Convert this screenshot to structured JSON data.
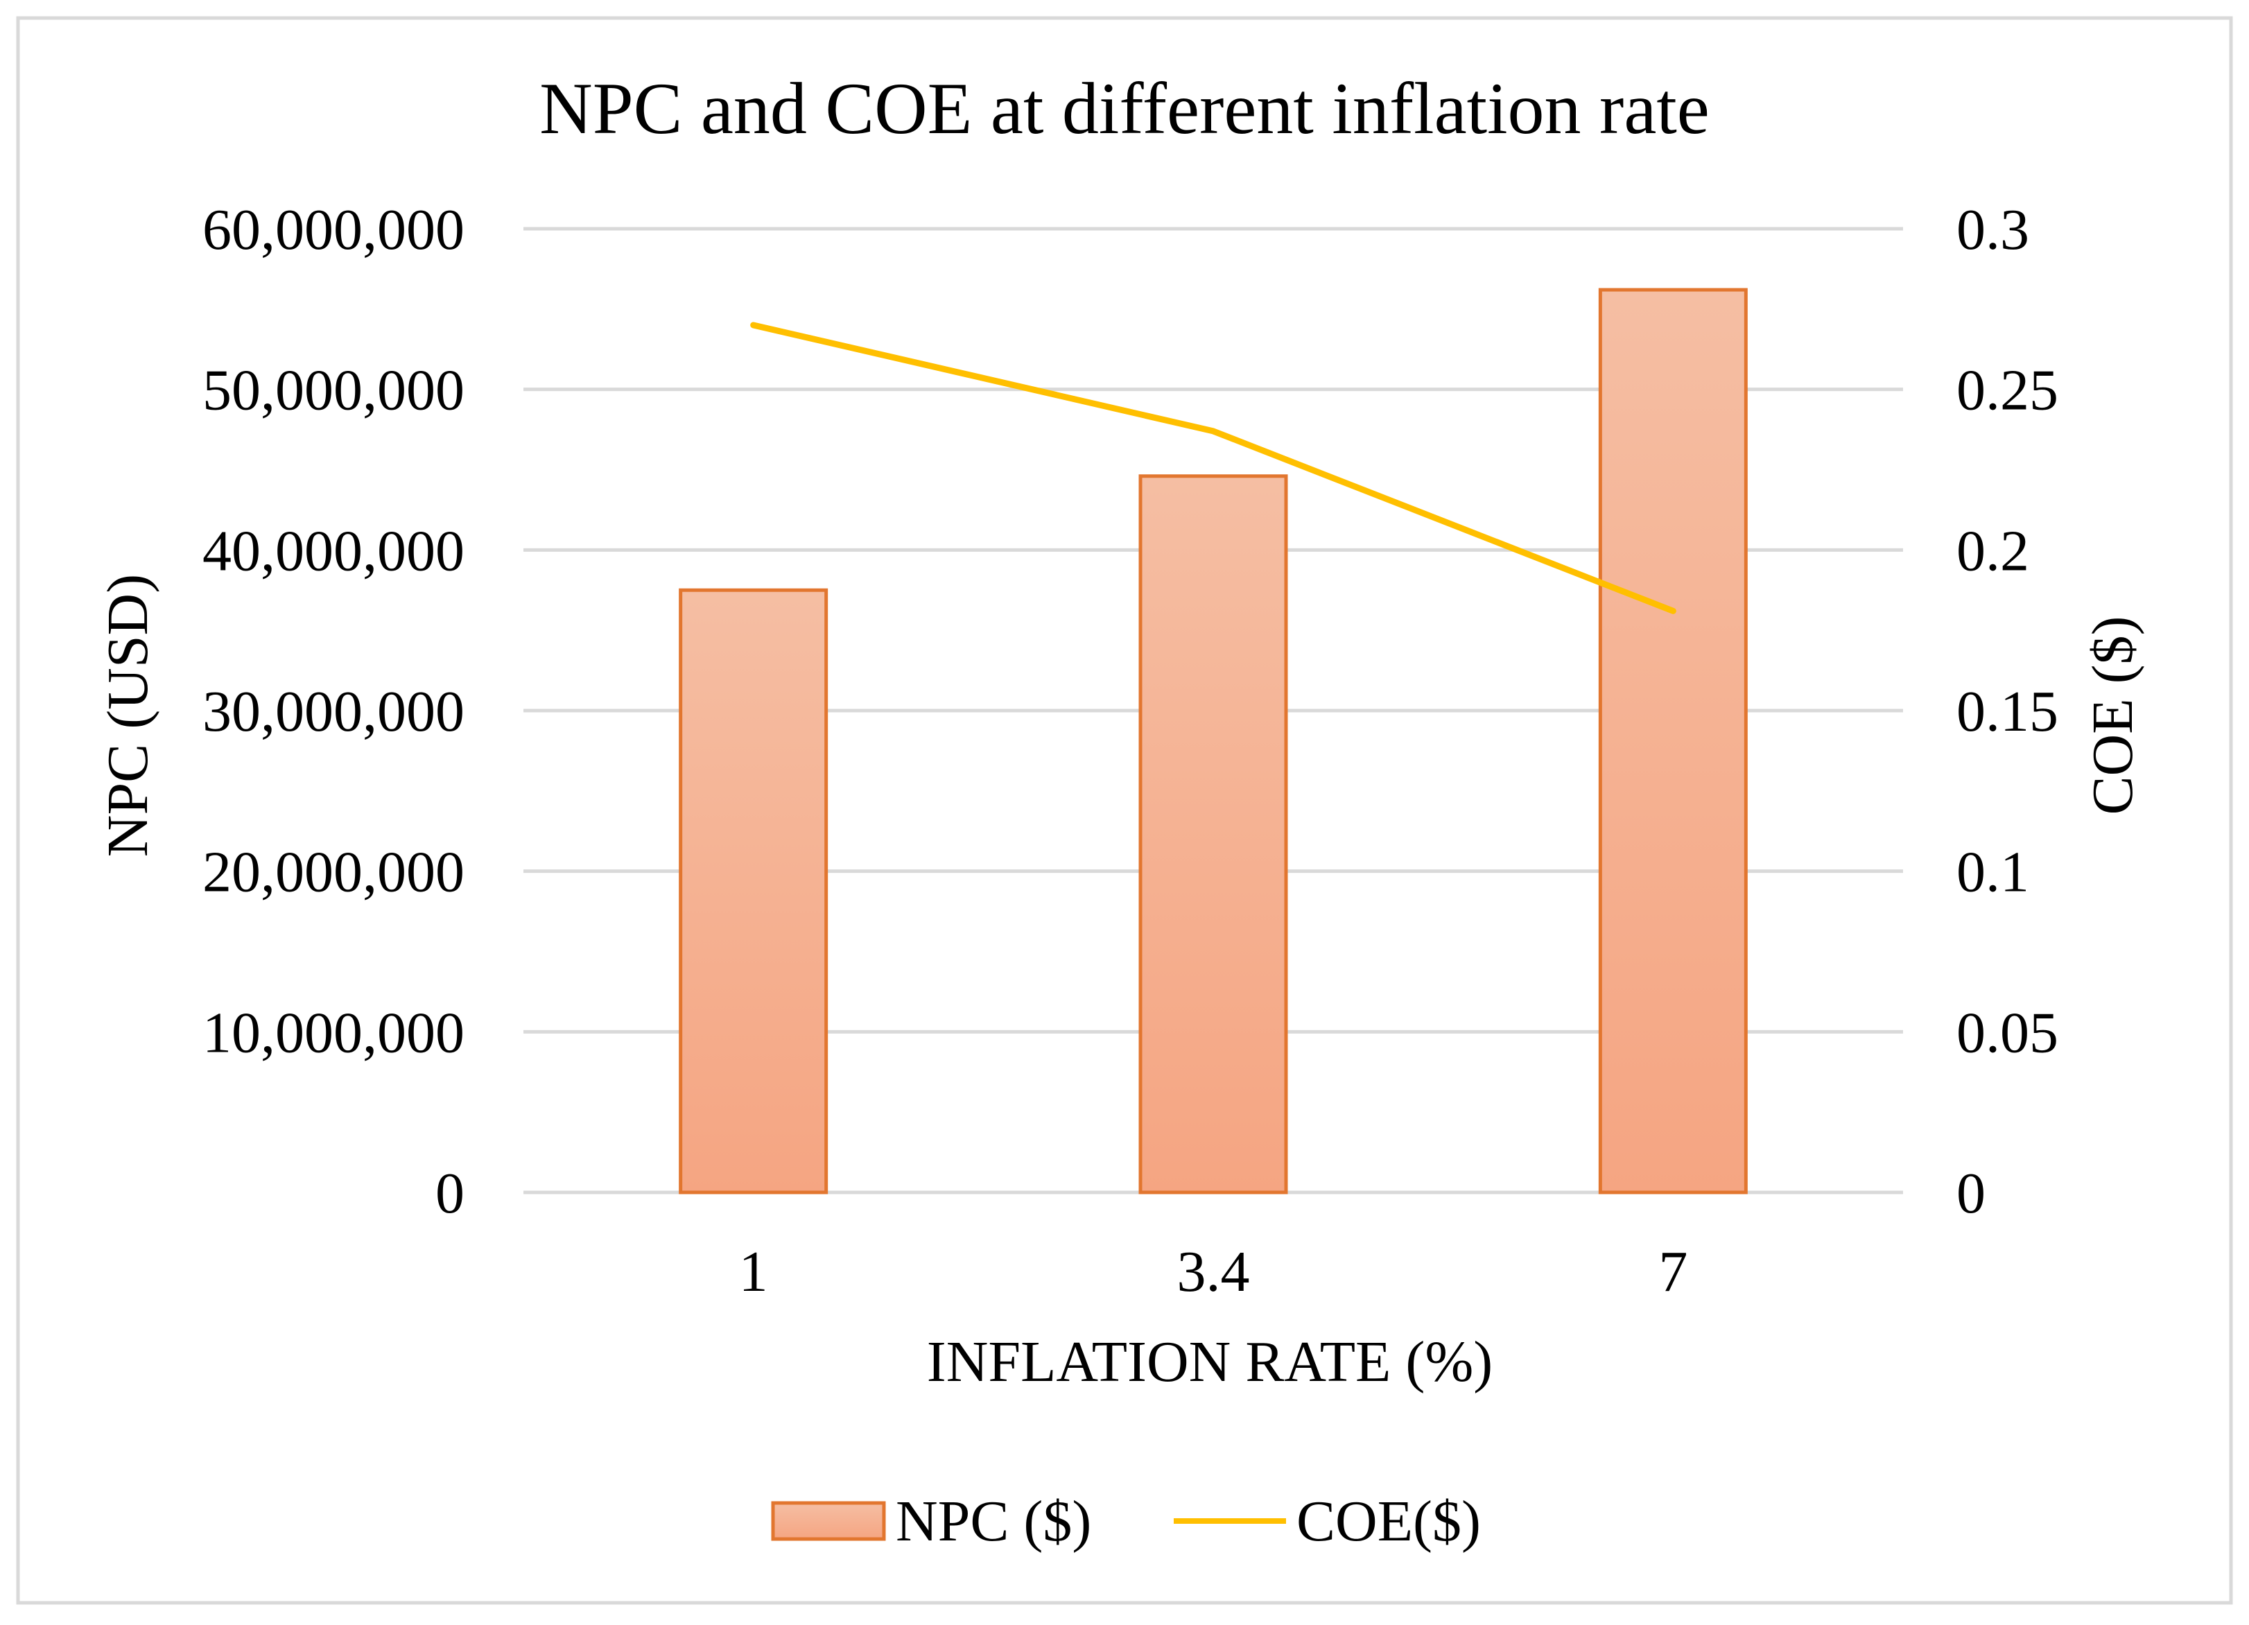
{
  "chart_data": {
    "type": "bar",
    "title": "NPC and COE at different inflation rate",
    "xlabel": "INFLATION RATE (%)",
    "ylabel": "NPC (USD)",
    "y2label": "COE ($)",
    "categories": [
      "1",
      "3.4",
      "7"
    ],
    "ylim": [
      0,
      60000000
    ],
    "y2lim": [
      0,
      0.3
    ],
    "y_ticks": [
      "0",
      "10,000,000",
      "20,000,000",
      "30,000,000",
      "40,000,000",
      "50,000,000",
      "60,000,000"
    ],
    "y2_ticks": [
      "0",
      "0.05",
      "0.1",
      "0.15",
      "0.2",
      "0.25",
      "0.3"
    ],
    "grid": true,
    "legend_position": "bottom",
    "series": [
      {
        "name": "NPC ($)",
        "type": "bar",
        "axis": "left",
        "values": [
          37500000,
          44600000,
          56200000
        ],
        "color": "#f5a582",
        "stroke": "#e2762f"
      },
      {
        "name": "COE($)",
        "type": "line",
        "axis": "right",
        "values": [
          0.27,
          0.237,
          0.181
        ],
        "color": "#ffbf00"
      }
    ]
  }
}
